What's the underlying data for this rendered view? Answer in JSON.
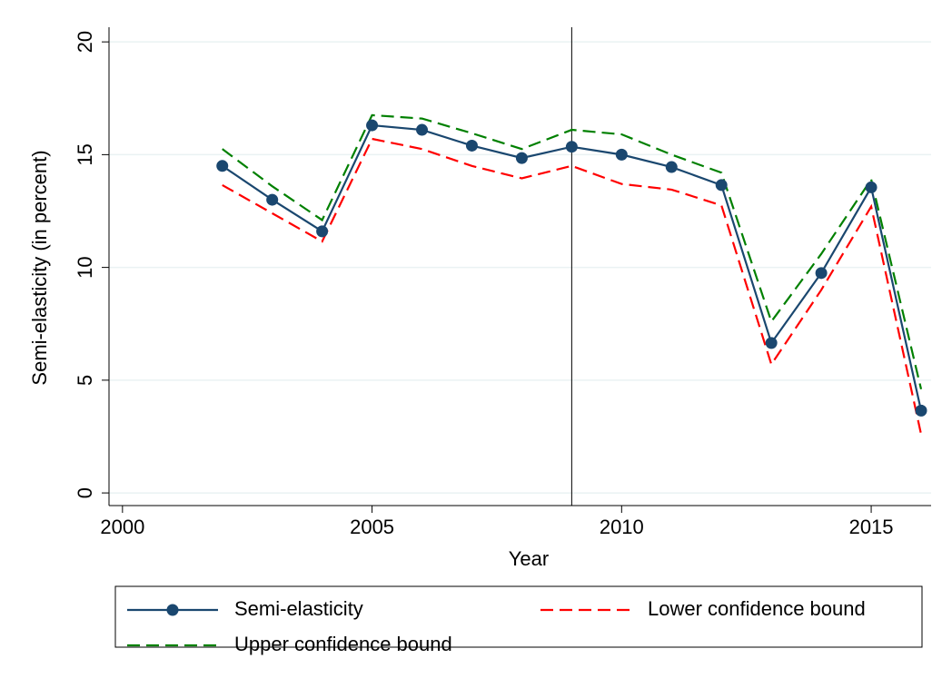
{
  "chart_data": {
    "type": "line",
    "xlabel": "Year",
    "ylabel": "Semi-elasticity (in percent)",
    "x": [
      2002,
      2003,
      2004,
      2005,
      2006,
      2007,
      2008,
      2009,
      2010,
      2011,
      2012,
      2013,
      2014,
      2015,
      2016
    ],
    "series": [
      {
        "name": "Semi-elasticity",
        "color": "#1a476f",
        "style": "solid",
        "markers": true,
        "values": [
          14.5,
          13.0,
          11.6,
          16.3,
          16.1,
          15.4,
          14.85,
          15.35,
          15.0,
          14.45,
          13.65,
          6.65,
          9.75,
          13.55,
          3.65
        ]
      },
      {
        "name": "Lower confidence bound",
        "color": "#ff0000",
        "style": "dashed",
        "markers": false,
        "values": [
          13.65,
          12.4,
          11.15,
          15.7,
          15.25,
          14.5,
          13.95,
          14.5,
          13.7,
          13.45,
          12.75,
          5.7,
          9.0,
          12.7,
          2.6
        ]
      },
      {
        "name": "Upper confidence bound",
        "color": "#008000",
        "style": "dashed",
        "markers": false,
        "values": [
          15.25,
          13.6,
          12.1,
          16.75,
          16.6,
          15.95,
          15.25,
          16.1,
          15.9,
          15.0,
          14.2,
          7.6,
          10.6,
          13.9,
          4.6
        ]
      }
    ],
    "xlim": [
      1999.73,
      2016.2
    ],
    "xticks": [
      2000,
      2005,
      2010,
      2015
    ],
    "ylim": [
      -0.56,
      20.65
    ],
    "yticks": [
      0,
      5,
      10,
      15,
      20
    ],
    "reference_line_x": 2009,
    "grid": true,
    "legend_position": "bottom"
  }
}
